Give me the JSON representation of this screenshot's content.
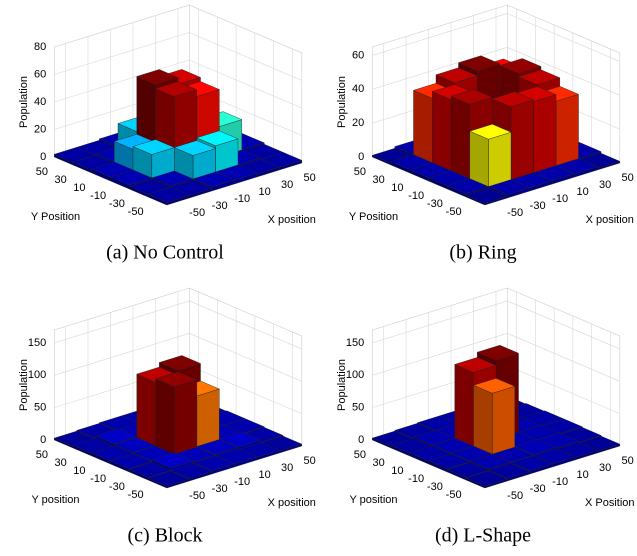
{
  "chart_data": [
    {
      "type": "bar3d",
      "caption": "(a) No Control",
      "xlabel": "X position",
      "ylabel": "Y Position",
      "zlabel": "Population",
      "xlim": [
        -60,
        60
      ],
      "ylim": [
        -60,
        60
      ],
      "zlim": [
        0,
        80
      ],
      "xticks": [
        -50,
        -30,
        -10,
        10,
        30,
        50
      ],
      "yticks": [
        -50,
        -30,
        -10,
        10,
        30,
        50
      ],
      "zticks": [
        0,
        20,
        40,
        60,
        80
      ],
      "values": [
        [
          2,
          2,
          3,
          3,
          2,
          2
        ],
        [
          2,
          3,
          20,
          22,
          3,
          2
        ],
        [
          3,
          20,
          57,
          52,
          25,
          3
        ],
        [
          3,
          18,
          60,
          55,
          22,
          3
        ],
        [
          2,
          3,
          20,
          25,
          5,
          2
        ],
        [
          2,
          2,
          3,
          3,
          2,
          2
        ]
      ]
    },
    {
      "type": "bar3d",
      "caption": "(b) Ring",
      "xlabel": "X position",
      "ylabel": "Y Position",
      "zlabel": "Population",
      "xlim": [
        -60,
        60
      ],
      "ylim": [
        -60,
        60
      ],
      "zlim": [
        0,
        65
      ],
      "xticks": [
        -50,
        -30,
        -10,
        10,
        30,
        50
      ],
      "yticks": [
        -50,
        -30,
        -10,
        10,
        30,
        50
      ],
      "zticks": [
        0,
        20,
        40,
        60
      ],
      "values": [
        [
          1,
          2,
          2,
          2,
          2,
          1
        ],
        [
          2,
          30,
          45,
          44,
          40,
          2
        ],
        [
          2,
          46,
          3,
          3,
          45,
          2
        ],
        [
          2,
          44,
          3,
          3,
          47,
          2
        ],
        [
          2,
          40,
          45,
          48,
          42,
          2
        ],
        [
          1,
          2,
          2,
          2,
          2,
          1
        ]
      ]
    },
    {
      "type": "bar3d",
      "caption": "(c) Block",
      "xlabel": "X position",
      "ylabel": "Y position",
      "zlabel": "Population",
      "xlim": [
        -60,
        60
      ],
      "ylim": [
        -60,
        60
      ],
      "zlim": [
        0,
        170
      ],
      "xticks": [
        -50,
        -30,
        -10,
        10,
        30,
        50
      ],
      "yticks": [
        -50,
        -30,
        -10,
        10,
        30,
        50
      ],
      "zticks": [
        0,
        50,
        100,
        150
      ],
      "values": [
        [
          3,
          4,
          5,
          5,
          4,
          3
        ],
        [
          4,
          8,
          6,
          7,
          8,
          4
        ],
        [
          5,
          6,
          110,
          85,
          6,
          5
        ],
        [
          5,
          7,
          105,
          112,
          7,
          5
        ],
        [
          4,
          8,
          6,
          6,
          8,
          4
        ],
        [
          3,
          4,
          5,
          5,
          4,
          3
        ]
      ]
    },
    {
      "type": "bar3d",
      "caption": "(d) L-Shape",
      "xlabel": "X Position",
      "ylabel": "Y position",
      "zlabel": "Population",
      "xlim": [
        -60,
        60
      ],
      "ylim": [
        -60,
        60
      ],
      "zlim": [
        0,
        170
      ],
      "xticks": [
        -50,
        -30,
        -10,
        10,
        30,
        50
      ],
      "yticks": [
        -50,
        -30,
        -10,
        10,
        30,
        50
      ],
      "zticks": [
        0,
        50,
        100,
        150
      ],
      "values": [
        [
          3,
          4,
          5,
          5,
          4,
          3
        ],
        [
          4,
          6,
          6,
          7,
          6,
          4
        ],
        [
          5,
          6,
          100,
          6,
          6,
          5
        ],
        [
          5,
          6,
          120,
          128,
          6,
          5
        ],
        [
          4,
          6,
          6,
          6,
          6,
          4
        ],
        [
          3,
          4,
          5,
          5,
          4,
          3
        ]
      ]
    }
  ]
}
